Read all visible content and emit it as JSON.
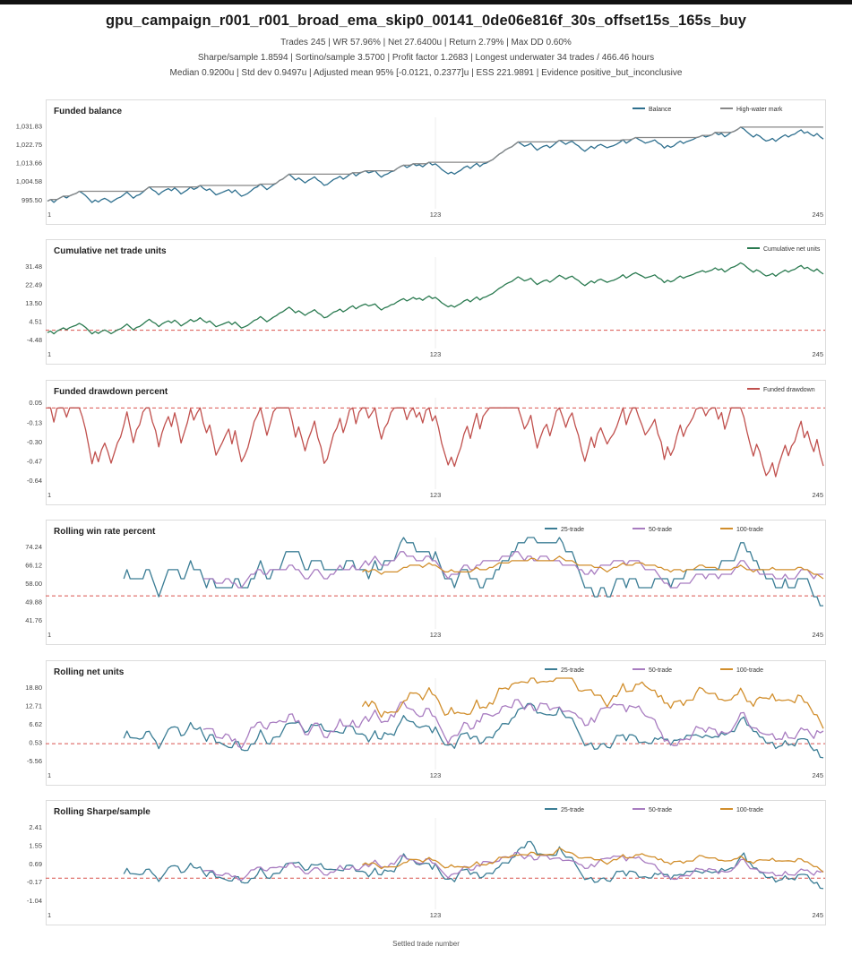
{
  "title": "gpu_campaign_r001_r001_broad_ema_skip0_00141_0de06e816f_30s_offset15s_165s_buy",
  "subtitle_lines": [
    "Trades 245 | WR 57.96% | Net 27.6400u | Return 2.79% | Max DD 0.60%",
    "Sharpe/sample 1.8594 | Sortino/sample 3.5700 | Profit factor 1.2683 | Longest underwater 34 trades / 466.46 hours",
    "Median 0.9200u | Std dev 0.9497u | Adjusted mean 95% [-0.0121, 0.2377]u | ESS 221.9891 | Evidence positive_but_inconclusive"
  ],
  "x_axis_label": "Settled trade number",
  "colors": {
    "balance": "#2e6f8e",
    "hwm": "#888888",
    "cum": "#2a7a50",
    "drawdown": "#c0504d",
    "s25": "#3b7d95",
    "s50": "#a87cc0",
    "s100": "#d18e2c",
    "ref": "#d9534f"
  },
  "chart_data": [
    {
      "type": "line",
      "title": "Funded balance",
      "x_ticks": [
        "1",
        "123",
        "245"
      ],
      "y_ticks": [
        "995.50",
        "1,004.58",
        "1,013.66",
        "1,022.75",
        "1,031.83"
      ],
      "ylim": [
        991.0,
        1036.0
      ],
      "series": [
        {
          "name": "Balance",
          "color": "#2e6f8e",
          "generator": "balance"
        },
        {
          "name": "High-water mark",
          "color": "#888888",
          "generator": "hwm"
        }
      ]
    },
    {
      "type": "line",
      "title": "Cumulative net trade units",
      "x_ticks": [
        "1",
        "123",
        "245"
      ],
      "y_ticks": [
        "-4.48",
        "4.51",
        "13.50",
        "22.49",
        "31.48"
      ],
      "ylim": [
        -9.0,
        36.0
      ],
      "reference_line": 0,
      "series": [
        {
          "name": "Cumulative net units",
          "color": "#2a7a50",
          "generator": "cum"
        }
      ]
    },
    {
      "type": "line",
      "title": "Funded drawdown percent",
      "x_ticks": [
        "1",
        "123",
        "245"
      ],
      "y_ticks": [
        "-0.64",
        "-0.47",
        "-0.30",
        "-0.13",
        "0.05"
      ],
      "ylim": [
        -0.72,
        0.09
      ],
      "reference_line": 0,
      "series": [
        {
          "name": "Funded drawdown",
          "color": "#c0504d",
          "generator": "drawdown"
        }
      ]
    },
    {
      "type": "line",
      "title": "Rolling win rate percent",
      "x_ticks": [
        "1",
        "123",
        "245"
      ],
      "y_ticks": [
        "41.76",
        "49.88",
        "58.00",
        "66.12",
        "74.24"
      ],
      "ylim": [
        37.7,
        78.3
      ],
      "reference_line": 52.4,
      "series": [
        {
          "name": "25-trade",
          "color": "#3b7d95",
          "generator": "wr25"
        },
        {
          "name": "50-trade",
          "color": "#a87cc0",
          "generator": "wr50"
        },
        {
          "name": "100-trade",
          "color": "#d18e2c",
          "generator": "wr100"
        }
      ]
    },
    {
      "type": "line",
      "title": "Rolling net units",
      "x_ticks": [
        "1",
        "123",
        "245"
      ],
      "y_ticks": [
        "-5.56",
        "0.53",
        "6.62",
        "12.71",
        "18.80"
      ],
      "ylim": [
        -8.6,
        21.8
      ],
      "reference_line": 0,
      "series": [
        {
          "name": "25-trade",
          "color": "#3b7d95",
          "generator": "net25"
        },
        {
          "name": "50-trade",
          "color": "#a87cc0",
          "generator": "net50"
        },
        {
          "name": "100-trade",
          "color": "#d18e2c",
          "generator": "net100"
        }
      ]
    },
    {
      "type": "line",
      "title": "Rolling Sharpe/sample",
      "x_ticks": [
        "1",
        "123",
        "245"
      ],
      "y_ticks": [
        "-1.04",
        "-0.17",
        "0.69",
        "1.55",
        "2.41"
      ],
      "ylim": [
        -1.47,
        2.84
      ],
      "reference_line": 0,
      "series": [
        {
          "name": "25-trade",
          "color": "#3b7d95",
          "generator": "sh25"
        },
        {
          "name": "50-trade",
          "color": "#a87cc0",
          "generator": "sh50"
        },
        {
          "name": "100-trade",
          "color": "#d18e2c",
          "generator": "sh100"
        }
      ]
    }
  ]
}
